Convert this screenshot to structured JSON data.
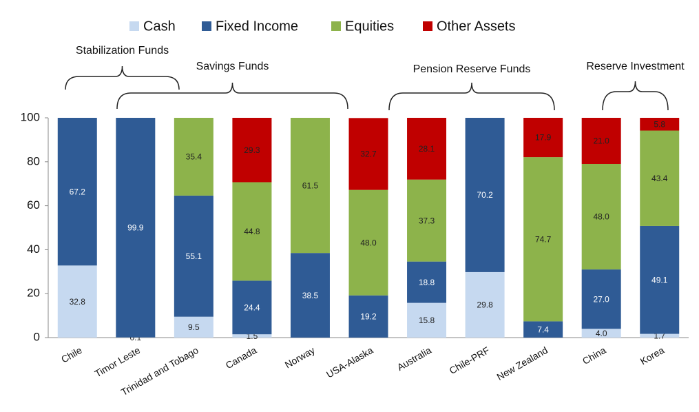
{
  "chart_data": {
    "type": "stacked_bar",
    "categories": [
      "Chile",
      "Timor Leste",
      "Trinidad and Tobago",
      "Canada",
      "Norway",
      "USA-Alaska",
      "Australia",
      "Chile-PRF",
      "New Zealand",
      "China",
      "Korea"
    ],
    "series": [
      {
        "name": "Cash",
        "color": "#c6d9f0",
        "values": [
          32.8,
          0.1,
          9.5,
          1.5,
          null,
          null,
          15.8,
          29.8,
          null,
          4.0,
          1.7
        ],
        "value_labels": [
          "32.8",
          "0.1",
          "9.5",
          "1.5",
          null,
          null,
          "15.8",
          "29.8",
          null,
          "4.0",
          "1.7"
        ]
      },
      {
        "name": "Fixed Income",
        "color": "#2f5b95",
        "values": [
          67.2,
          99.9,
          55.1,
          24.4,
          38.5,
          19.2,
          18.8,
          70.2,
          7.4,
          27.0,
          49.1
        ],
        "value_labels": [
          "67.2",
          "99.9",
          "55.1",
          "24.4",
          "38.5",
          "19.2",
          "18.8",
          "70.2",
          "7.4",
          "27.0",
          "49.1"
        ]
      },
      {
        "name": "Equities",
        "color": "#8db34b",
        "values": [
          null,
          null,
          35.4,
          44.8,
          61.5,
          48.0,
          37.3,
          null,
          74.7,
          48.0,
          43.4
        ],
        "value_labels": [
          null,
          null,
          "35.4",
          "44.8",
          "61.5",
          "48.0",
          "37.3",
          null,
          "74.7",
          "48.0",
          "43.4"
        ]
      },
      {
        "name": "Other Assets",
        "color": "#c00000",
        "values": [
          null,
          null,
          null,
          29.3,
          null,
          32.7,
          28.1,
          null,
          17.9,
          21.0,
          5.8
        ],
        "value_labels": [
          null,
          null,
          null,
          "29.3",
          null,
          "32.7",
          "28.1",
          null,
          "17.9",
          "21.0",
          "5.8"
        ]
      }
    ],
    "ylim": [
      0,
      100
    ],
    "yticks": [
      0,
      20,
      40,
      60,
      80,
      100
    ],
    "grid": false,
    "legend": "top",
    "annotations": [
      "Stabilization Funds",
      "Savings Funds",
      "Pension Reserve Funds",
      "Reserve Investment"
    ]
  }
}
